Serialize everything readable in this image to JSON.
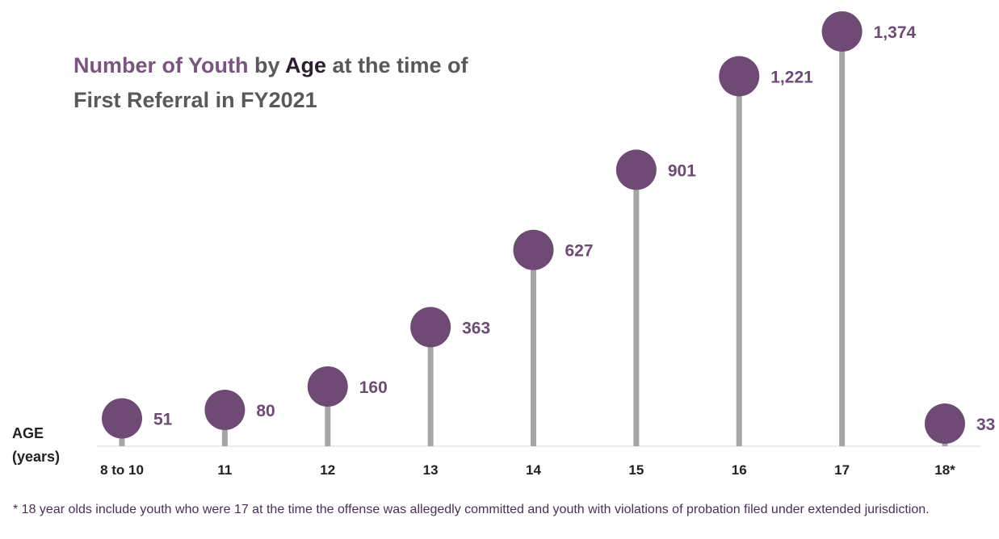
{
  "chart_data": {
    "type": "lollipop",
    "title_parts": [
      {
        "text": "Number of Youth",
        "emphasis": "accent"
      },
      {
        "text": " by ",
        "emphasis": "normal"
      },
      {
        "text": "Age",
        "emphasis": "dark"
      },
      {
        "text": " at the time of",
        "emphasis": "normal"
      }
    ],
    "title_line2": "First Referral in FY2021",
    "axis_title_line1": "AGE",
    "axis_title_line2": "(years)",
    "categories": [
      "8 to 10",
      "11",
      "12",
      "13",
      "14",
      "15",
      "16",
      "17",
      "18*"
    ],
    "values": [
      51,
      80,
      160,
      363,
      627,
      901,
      1221,
      1374,
      33
    ],
    "value_labels": [
      "51",
      "80",
      "160",
      "363",
      "627",
      "901",
      "1,221",
      "1,374",
      "33"
    ],
    "ylim": [
      0,
      1374
    ],
    "grid": false,
    "colors": {
      "dot": "#6e4a75",
      "stem": "#a6a6a6",
      "accent_text": "#7b557f",
      "dark_text": "#2a1f2d",
      "normal_text": "#595959",
      "value_text": "#6e4a75",
      "baseline": "#d9d9d9"
    }
  },
  "footnote": {
    "text": "* 18 year olds include youth who were 17 at the time the offense was allegedly committed and youth with violations of probation filed under extended jurisdiction."
  }
}
